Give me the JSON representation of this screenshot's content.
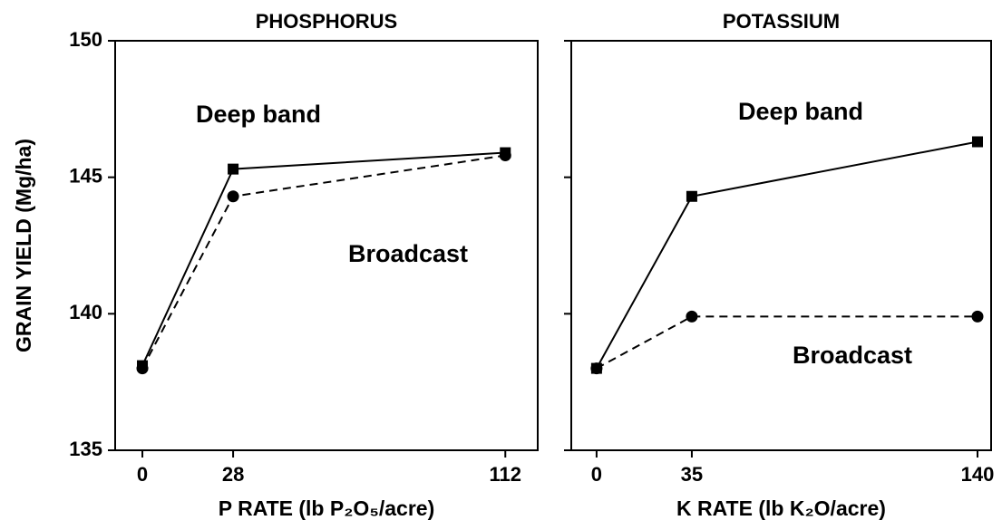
{
  "chart_data": [
    {
      "type": "line",
      "title": "PHOSPHORUS",
      "xlabel": "P RATE (lb P₂O₅/acre)",
      "ylabel": "GRAIN YIELD (Mg/ha)",
      "x": [
        0,
        28,
        112
      ],
      "series": [
        {
          "name": "Deep band",
          "color": "#000000",
          "marker": "square",
          "linestyle": "solid",
          "values": [
            138.1,
            145.3,
            145.9
          ]
        },
        {
          "name": "Broadcast",
          "color": "#000000",
          "marker": "circle",
          "linestyle": "dashed",
          "values": [
            138.0,
            144.3,
            145.8
          ]
        }
      ],
      "xlim": [
        -8.4,
        122
      ],
      "xticks": [
        0,
        28,
        112
      ],
      "ylim": [
        135,
        150
      ],
      "yticks": [
        135,
        140,
        145,
        150
      ]
    },
    {
      "type": "line",
      "title": "POTASSIUM",
      "xlabel": "K RATE (lb K₂O/acre)",
      "x": [
        0,
        35,
        140
      ],
      "series": [
        {
          "name": "Deep band",
          "color": "#000000",
          "marker": "square",
          "linestyle": "solid",
          "values": [
            138.0,
            144.3,
            146.3
          ]
        },
        {
          "name": "Broadcast",
          "color": "#000000",
          "marker": "circle",
          "linestyle": "dashed",
          "values": [
            138.0,
            139.9,
            139.9
          ]
        }
      ],
      "xlim": [
        -9.3,
        145
      ],
      "xticks": [
        0,
        35,
        140
      ],
      "ylim": [
        135,
        150
      ]
    }
  ]
}
